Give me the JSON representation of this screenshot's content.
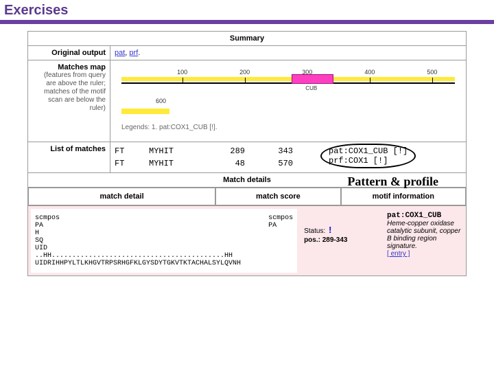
{
  "page": {
    "title": "Exercises"
  },
  "colors": {
    "purple": "#6b3fa0",
    "titlePurple": "#5a3a8e",
    "yellow": "#ffea3a",
    "magenta": "#ff3fbf",
    "pinkBg": "#fce7ea",
    "link": "#3333cc",
    "border": "#999999"
  },
  "summary": {
    "header": "Summary",
    "original": {
      "label": "Original output",
      "link1": "pat",
      "sep": ", ",
      "link2": "prf",
      "trail": "."
    },
    "map": {
      "label": "Matches map",
      "sub": "(features from query are above the ruler; matches of the motif scan are below the ruler)",
      "ticks": [
        {
          "label": "100",
          "leftPct": 18
        },
        {
          "label": "200",
          "leftPct": 36
        },
        {
          "label": "300",
          "leftPct": 54
        },
        {
          "label": "400",
          "leftPct": 72
        },
        {
          "label": "500",
          "leftPct": 90
        }
      ],
      "feature": {
        "label": "CUB",
        "startPct": 51,
        "widthPct": 12
      },
      "sixLabel": "600",
      "legend": "Legends: 1. pat:COX1_CUB [!]."
    },
    "list": {
      "label": "List of matches",
      "rows": [
        {
          "ft": "FT",
          "id": "MYHIT",
          "from": "289",
          "to": "343",
          "desc": "pat:COX1_CUB [!]"
        },
        {
          "ft": "FT",
          "id": "MYHIT",
          "from": "48",
          "to": "570",
          "desc": "prf:COX1 [!]"
        }
      ]
    }
  },
  "annotation": "Pattern & profile",
  "details": {
    "header": "Match details",
    "cols": {
      "detail": "match detail",
      "score": "match score",
      "motif": "motif information"
    },
    "seq": {
      "lines": [
        "scmpos",
        "PA",
        "  H",
        "SQ",
        "  ",
        "UID",
        "  ..HH..........................................HH",
        "UIDRIHHPYLTLKHGVTRPSRHGFKLGYSDYTGKVTKTACHALSYLQVNH"
      ],
      "right": [
        "scmpos",
        "PA"
      ]
    },
    "score": {
      "statusLabel": "Status:",
      "statusGlyph": "!",
      "posLabel": "pos.:",
      "pos": "289-343"
    },
    "motif": {
      "id": "pat:COX1_CUB",
      "desc": "Heme-copper oxidase catalytic subunit, copper B binding region signature.",
      "entry": "[ entry ]"
    }
  }
}
